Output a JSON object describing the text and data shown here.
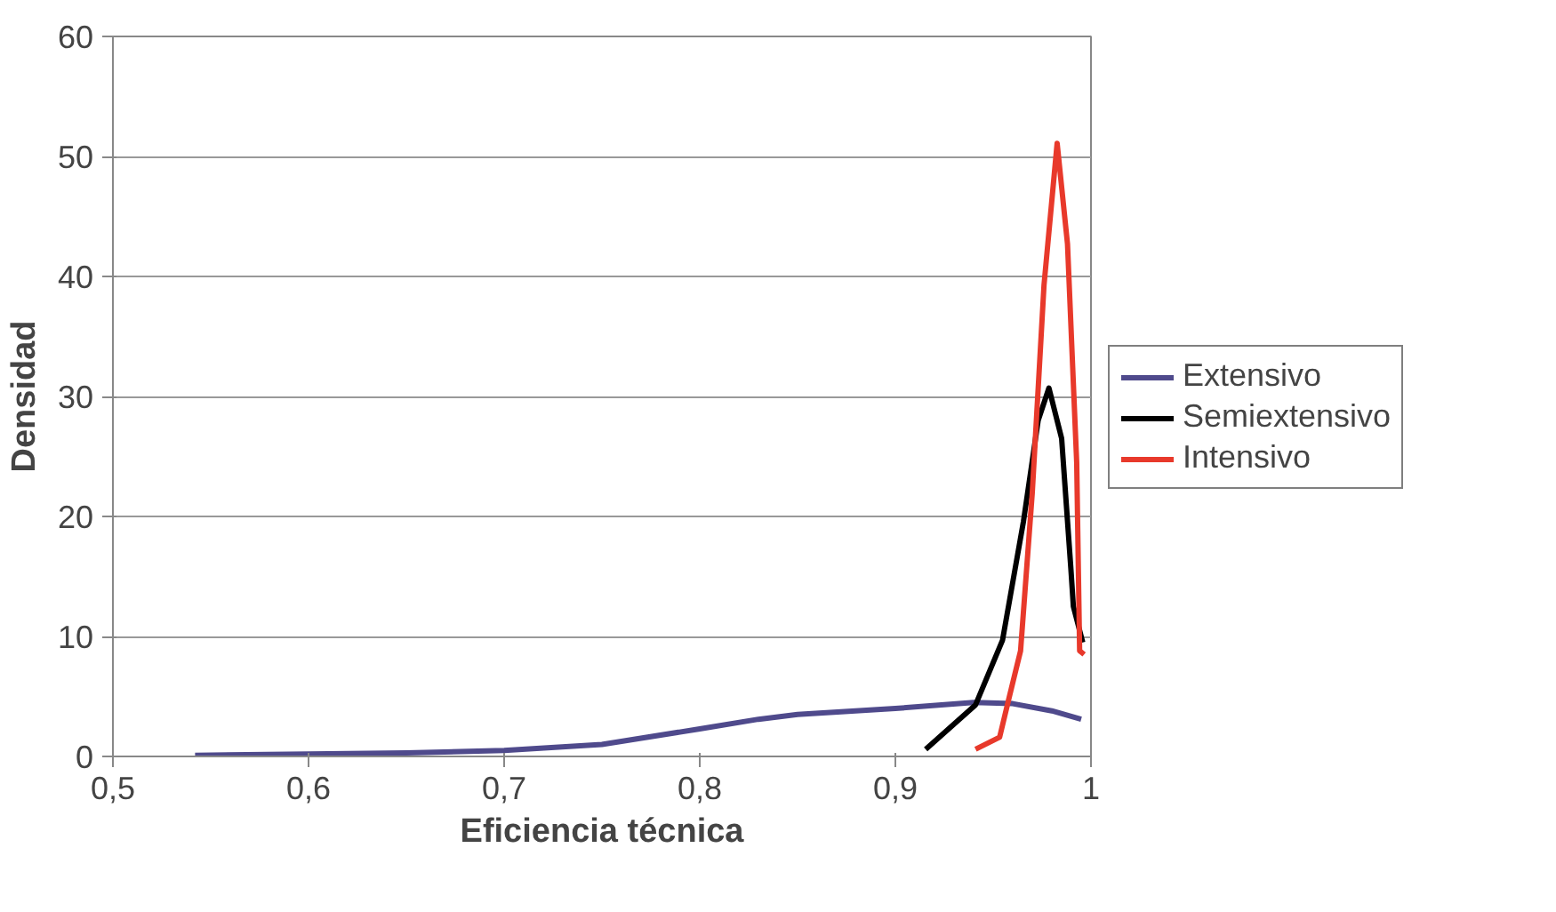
{
  "chart_data": {
    "type": "line",
    "xlabel": "Eficiencia técnica",
    "ylabel": "Densidad",
    "xlim": [
      0.5,
      1
    ],
    "ylim": [
      0,
      60
    ],
    "xticks": [
      {
        "value": 0.5,
        "label": "0,5"
      },
      {
        "value": 0.6,
        "label": "0,6"
      },
      {
        "value": 0.7,
        "label": "0,7"
      },
      {
        "value": 0.8,
        "label": "0,8"
      },
      {
        "value": 0.9,
        "label": "0,9"
      },
      {
        "value": 1,
        "label": "1"
      }
    ],
    "yticks": [
      0,
      10,
      20,
      30,
      40,
      50,
      60
    ],
    "grid": "y",
    "legend": "right",
    "marker": "none",
    "line_style": "solid",
    "series": [
      {
        "name": "Extensivo",
        "color": "#4f4a8c",
        "x": [
          0.542,
          0.6,
          0.65,
          0.7,
          0.75,
          0.8,
          0.83,
          0.85,
          0.9,
          0.94,
          0.96,
          0.98,
          0.995
        ],
        "values": [
          0.1,
          0.2,
          0.3,
          0.5,
          1.0,
          2.3,
          3.1,
          3.5,
          4.0,
          4.5,
          4.4,
          3.8,
          3.1
        ]
      },
      {
        "name": "Semiextensivo",
        "color": "#000000",
        "x": [
          0.9155,
          0.941,
          0.9548,
          0.9655,
          0.973,
          0.9785,
          0.985,
          0.9897,
          0.991,
          0.9958
        ],
        "values": [
          0.6,
          4.3,
          9.7,
          19.6,
          28,
          30.7,
          26.5,
          15.7,
          12.5,
          9.5
        ]
      },
      {
        "name": "Intensivo",
        "color": "#e8392b",
        "x": [
          0.941,
          0.9533,
          0.958,
          0.964,
          0.97,
          0.976,
          0.9827,
          0.988,
          0.9927,
          0.9942,
          0.9965
        ],
        "values": [
          0.6,
          1.6,
          4.8,
          8.8,
          22,
          39.3,
          51.1,
          42.7,
          24.5,
          8.8,
          8.5
        ]
      }
    ]
  }
}
